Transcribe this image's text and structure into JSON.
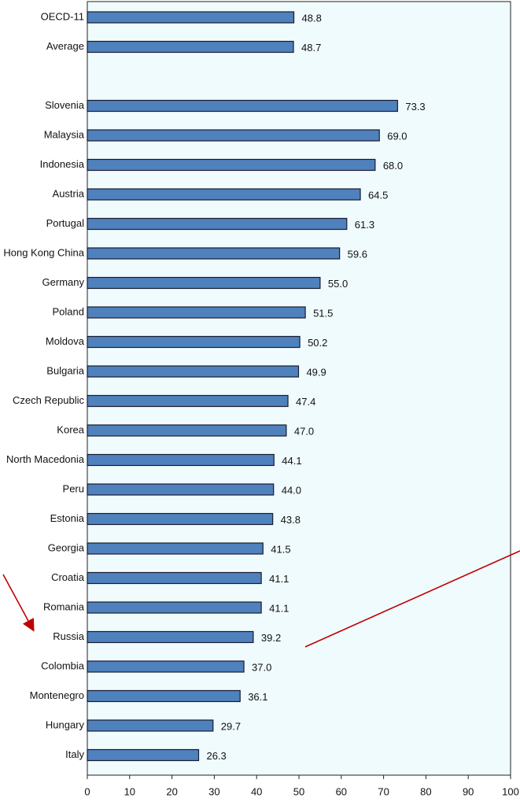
{
  "chart_data": {
    "type": "bar",
    "orientation": "horizontal",
    "categories": [
      "OECD-11",
      "Average",
      null,
      "Slovenia",
      "Malaysia",
      "Indonesia",
      "Austria",
      "Portugal",
      "Hong Kong China",
      "Germany",
      "Poland",
      "Moldova",
      "Bulgaria",
      "Czech Republic",
      "Korea",
      "North Macedonia",
      "Peru",
      "Estonia",
      "Georgia",
      "Croatia",
      "Romania",
      "Russia",
      "Colombia",
      "Montenegro",
      "Hungary",
      "Italy"
    ],
    "values": [
      48.8,
      48.7,
      null,
      73.3,
      69.0,
      68.0,
      64.5,
      61.3,
      59.6,
      55.0,
      51.5,
      50.2,
      49.9,
      47.4,
      47.0,
      44.1,
      44.0,
      43.8,
      41.5,
      41.1,
      41.1,
      39.2,
      37.0,
      36.1,
      29.7,
      26.3
    ],
    "value_labels": [
      "48.8",
      "48.7",
      null,
      "73.3",
      "69.0",
      "68.0",
      "64.5",
      "61.3",
      "59.6",
      "55.0",
      "51.5",
      "50.2",
      "49.9",
      "47.4",
      "47.0",
      "44.1",
      "44.0",
      "43.8",
      "41.5",
      "41.1",
      "41.1",
      "39.2",
      "37.0",
      "36.1",
      "29.7",
      "26.3"
    ],
    "color": "#4f81bd",
    "xlim": [
      0,
      100
    ],
    "xticks": [
      0,
      10,
      20,
      30,
      40,
      50,
      60,
      70,
      80,
      90,
      100
    ]
  }
}
